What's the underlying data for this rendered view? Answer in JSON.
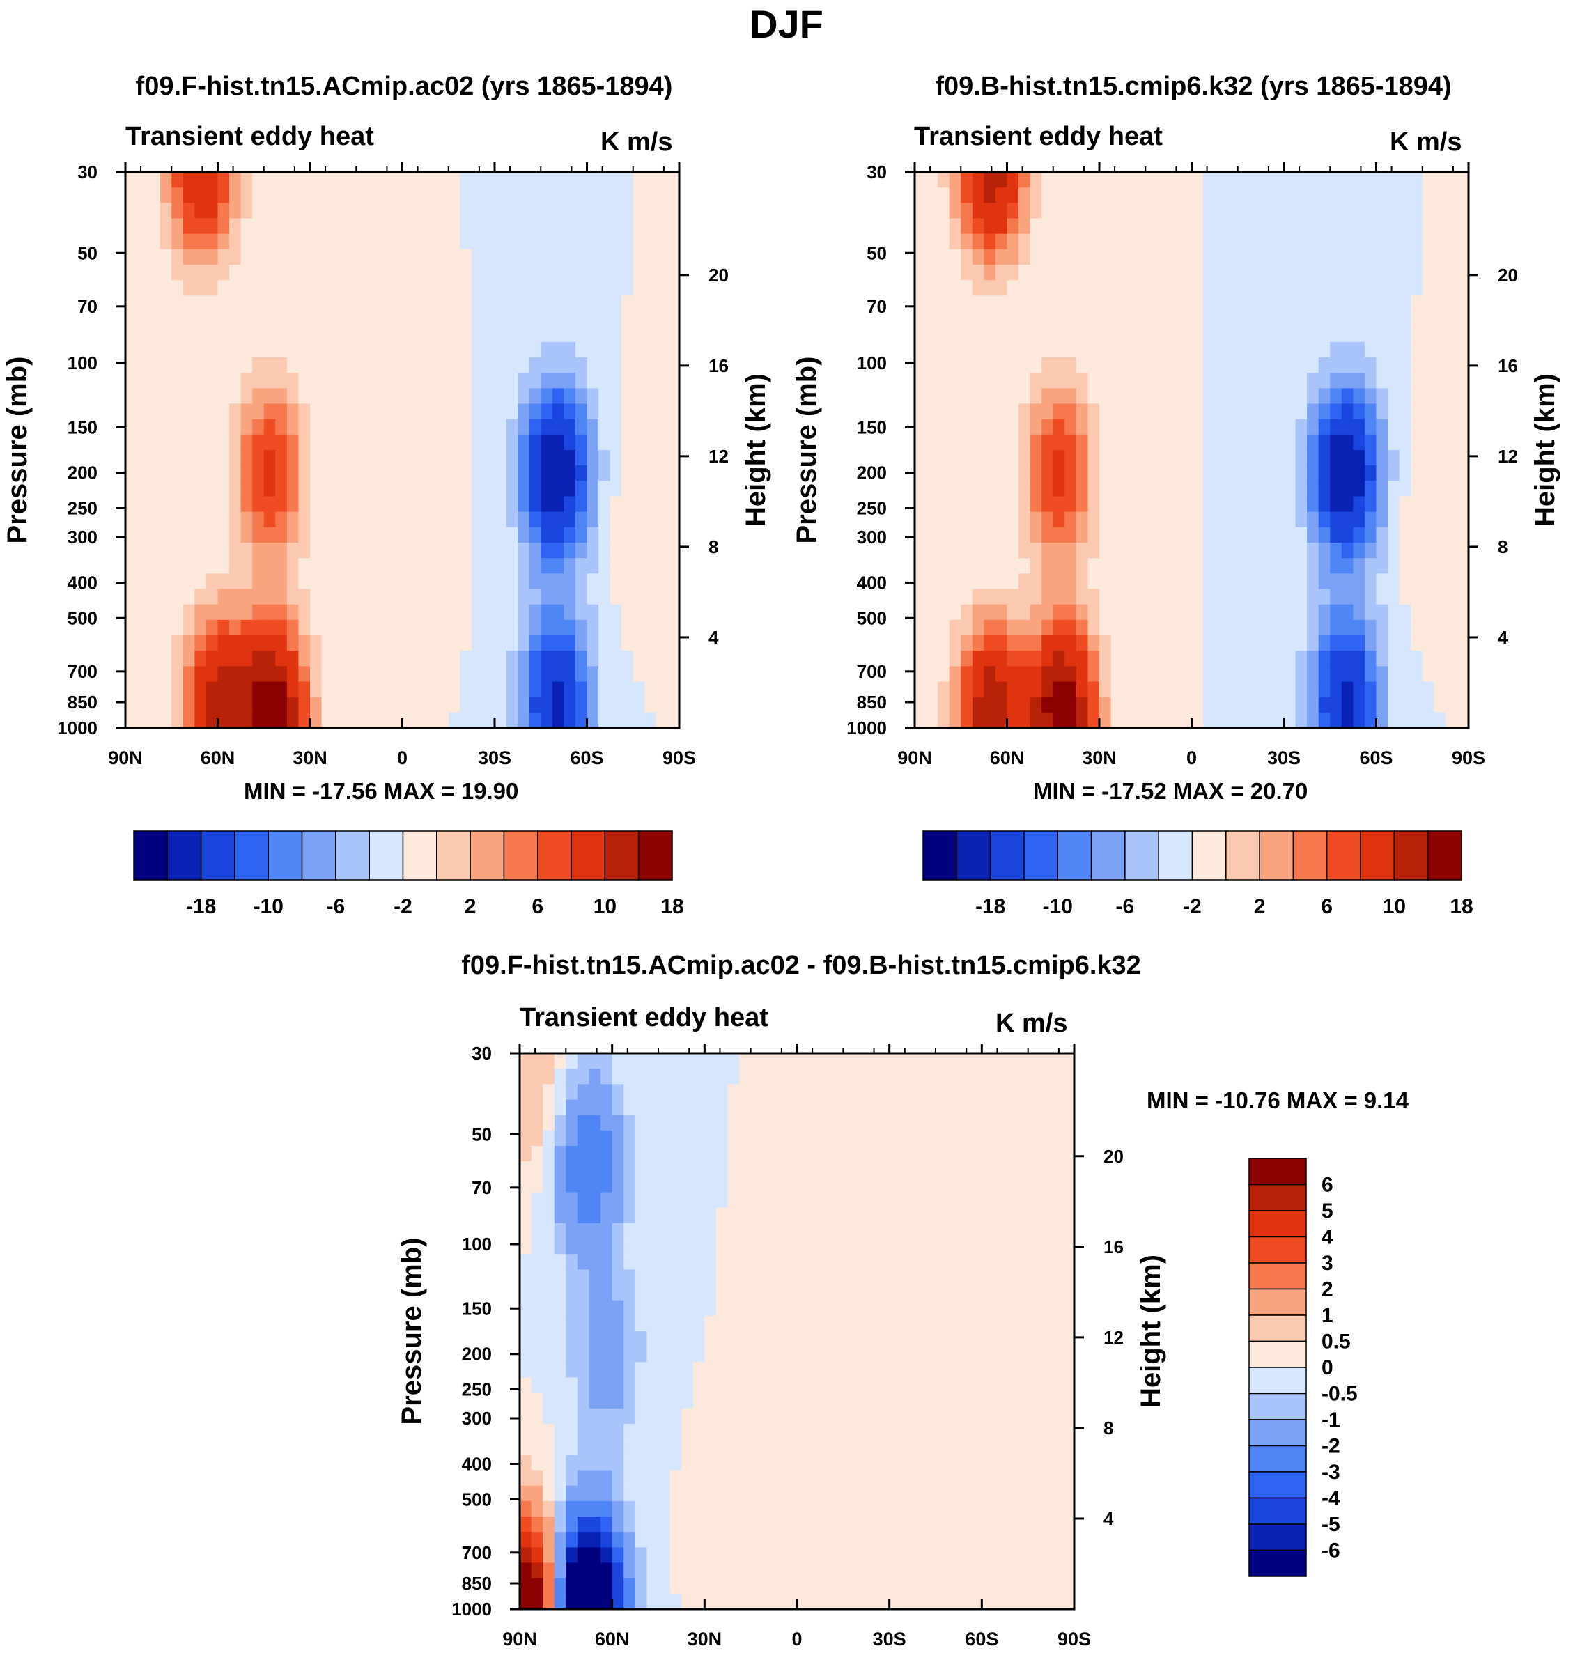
{
  "main_title": "DJF",
  "chart_data": [
    {
      "type": "heatmap",
      "title": "f09.F-hist.tn15.ACmip.ac02 (yrs 1865-1894)",
      "field_label": "Transient eddy heat",
      "units": "K m/s",
      "xlabel": "",
      "ylabel": "Pressure (mb)",
      "y2label": "Height (km)",
      "x_ticks": [
        "90N",
        "60N",
        "30N",
        "0",
        "30S",
        "60S",
        "90S"
      ],
      "y_ticks": [
        30,
        50,
        70,
        100,
        150,
        200,
        250,
        300,
        400,
        500,
        700,
        850,
        1000
      ],
      "y2_ticks": [
        20,
        16,
        12,
        8,
        4
      ],
      "minmax_text": "MIN = -17.56  MAX =  19.90",
      "min": -17.56,
      "max": 19.9,
      "colorbar_levels": [
        -18,
        -14,
        -10,
        -8,
        -6,
        -4,
        -2,
        0,
        2,
        4,
        6,
        8,
        10,
        14,
        18
      ],
      "colorbar_labels": [
        "-18",
        "-10",
        "-6",
        "-2",
        "2",
        "6",
        "10",
        "18"
      ],
      "features": [
        {
          "lat": 65,
          "p": 30,
          "value": 14
        },
        {
          "lat": 43,
          "p": 200,
          "value": 11
        },
        {
          "lat": 42,
          "p": 900,
          "value": 19.9
        },
        {
          "lat": 60,
          "p": 850,
          "value": 15
        },
        {
          "lat": -50,
          "p": 200,
          "value": -17.56
        },
        {
          "lat": -50,
          "p": 850,
          "value": -15
        },
        {
          "lat": -5,
          "p": 250,
          "value": 1
        },
        {
          "lat": -80,
          "p": 250,
          "value": 2
        }
      ]
    },
    {
      "type": "heatmap",
      "title": "f09.B-hist.tn15.cmip6.k32 (yrs 1865-1894)",
      "field_label": "Transient eddy heat",
      "units": "K m/s",
      "xlabel": "",
      "ylabel": "Pressure (mb)",
      "y2label": "Height (km)",
      "x_ticks": [
        "90N",
        "60N",
        "30N",
        "0",
        "30S",
        "60S",
        "90S"
      ],
      "y_ticks": [
        30,
        50,
        70,
        100,
        150,
        200,
        250,
        300,
        400,
        500,
        700,
        850,
        1000
      ],
      "y2_ticks": [
        20,
        16,
        12,
        8,
        4
      ],
      "minmax_text": "MIN = -17.52  MAX =  20.70",
      "min": -17.52,
      "max": 20.7,
      "colorbar_levels": [
        -18,
        -14,
        -10,
        -8,
        -6,
        -4,
        -2,
        0,
        2,
        4,
        6,
        8,
        10,
        14,
        18
      ],
      "colorbar_labels": [
        "-18",
        "-10",
        "-6",
        "-2",
        "2",
        "6",
        "10",
        "18"
      ],
      "features": [
        {
          "lat": 65,
          "p": 30,
          "value": 16
        },
        {
          "lat": 43,
          "p": 200,
          "value": 11
        },
        {
          "lat": 42,
          "p": 900,
          "value": 20.7
        },
        {
          "lat": 65,
          "p": 900,
          "value": 17
        },
        {
          "lat": -50,
          "p": 200,
          "value": -17.52
        },
        {
          "lat": -50,
          "p": 850,
          "value": -15
        },
        {
          "lat": -80,
          "p": 250,
          "value": 2
        }
      ]
    },
    {
      "type": "heatmap",
      "title": "f09.F-hist.tn15.ACmip.ac02 - f09.B-hist.tn15.cmip6.k32",
      "field_label": "Transient eddy heat",
      "units": "K m/s",
      "xlabel": "",
      "ylabel": "Pressure (mb)",
      "y2label": "Height (km)",
      "x_ticks": [
        "90N",
        "60N",
        "30N",
        "0",
        "30S",
        "60S",
        "90S"
      ],
      "y_ticks": [
        30,
        50,
        70,
        100,
        150,
        200,
        250,
        300,
        400,
        500,
        700,
        850,
        1000
      ],
      "y2_ticks": [
        20,
        16,
        12,
        8,
        4
      ],
      "minmax_text": "MIN = -10.76  MAX =    9.14",
      "min": -10.76,
      "max": 9.14,
      "colorbar_levels": [
        -6,
        -5,
        -4,
        -3,
        -2,
        -1,
        -0.5,
        0,
        0.5,
        1,
        2,
        3,
        4,
        5,
        6
      ],
      "colorbar_labels": [
        "6",
        "5",
        "4",
        "3",
        "2",
        "1",
        "0.5",
        "0",
        "-0.5",
        "-1",
        "-2",
        "-3",
        "-4",
        "-5",
        "-6"
      ],
      "features": [
        {
          "lat": 68,
          "p": 60,
          "value": -3
        },
        {
          "lat": 62,
          "p": 200,
          "value": -1.5
        },
        {
          "lat": 68,
          "p": 990,
          "value": -10.76
        },
        {
          "lat": 85,
          "p": 40,
          "value": 1
        },
        {
          "lat": 88,
          "p": 1000,
          "value": 9.14
        },
        {
          "lat": 20,
          "p": 700,
          "value": 0.3
        },
        {
          "lat": -10,
          "p": 200,
          "value": 0.3
        },
        {
          "lat": -75,
          "p": 200,
          "value": 0.3
        }
      ]
    }
  ],
  "colors": {
    "scale": [
      "#00007f",
      "#0a22b4",
      "#1a46de",
      "#2f63f2",
      "#4f85f4",
      "#7ca2f5",
      "#a9c4fa",
      "#d6e6fc",
      "#fde9dc",
      "#fbc8b0",
      "#f9a47e",
      "#f5794c",
      "#f04c24",
      "#e03410",
      "#b82208",
      "#8b0000"
    ]
  }
}
